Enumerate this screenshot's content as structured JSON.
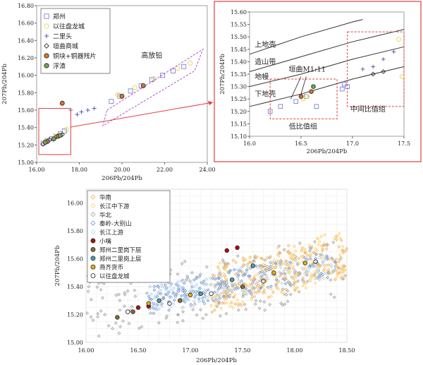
{
  "chart_data": [
    {
      "id": "overview",
      "type": "scatter",
      "xlabel": "206Pb/204Pb",
      "ylabel": "207Pb/204Pb",
      "xlim": [
        16.0,
        24.0
      ],
      "ylim": [
        15.0,
        16.8
      ],
      "xticks": [
        "16.00",
        "18.00",
        "20.00",
        "22.00",
        "24.00"
      ],
      "yticks": [
        "15.00",
        "15.20",
        "15.40",
        "15.60",
        "15.80",
        "16.00",
        "16.20",
        "16.40",
        "16.60",
        "16.80"
      ],
      "grid": false,
      "legend_position": "top-left",
      "annotations": [
        "高放铅"
      ],
      "series": [
        {
          "name": "郑州",
          "marker": "square",
          "color": "#7f7fd8",
          "fill": "none",
          "points": [
            [
              16.3,
              15.22
            ],
            [
              16.5,
              15.25
            ],
            [
              16.7,
              15.27
            ],
            [
              16.9,
              15.3
            ],
            [
              17.1,
              15.33
            ],
            [
              17.3,
              15.36
            ],
            [
              19.5,
              15.7
            ],
            [
              19.9,
              15.76
            ],
            [
              20.4,
              15.82
            ],
            [
              20.9,
              15.88
            ],
            [
              21.4,
              15.95
            ],
            [
              21.9,
              16.0
            ],
            [
              22.4,
              16.05
            ],
            [
              22.9,
              16.1
            ]
          ]
        },
        {
          "name": "以往盘龙城",
          "marker": "circle",
          "color": "#e8d34a",
          "fill": "none",
          "points": [
            [
              16.4,
              15.24
            ],
            [
              16.9,
              15.3
            ],
            [
              17.4,
              15.38
            ],
            [
              19.8,
              15.78
            ],
            [
              20.6,
              15.86
            ],
            [
              21.5,
              15.96
            ],
            [
              22.6,
              16.08
            ],
            [
              23.2,
              16.14
            ]
          ]
        },
        {
          "name": "二里头",
          "marker": "plus",
          "color": "#5060b8",
          "fill": "none",
          "points": [
            [
              17.6,
              15.6
            ],
            [
              17.9,
              15.55
            ],
            [
              18.1,
              15.58
            ],
            [
              18.4,
              15.6
            ],
            [
              18.7,
              15.62
            ]
          ]
        },
        {
          "name": "垣曲商城",
          "marker": "diamond",
          "color": "#333333",
          "fill": "none",
          "points": [
            [
              16.3,
              15.21
            ],
            [
              16.6,
              15.26
            ],
            [
              16.9,
              15.29
            ],
            [
              17.2,
              15.32
            ]
          ]
        },
        {
          "name": "铜块+铜器残片",
          "marker": "circle",
          "color": "#333333",
          "fill": "#d9742b",
          "points": [
            [
              16.5,
              15.24
            ],
            [
              17.0,
              15.3
            ],
            [
              17.2,
              15.68
            ],
            [
              20.0,
              15.76
            ],
            [
              21.0,
              15.88
            ]
          ]
        },
        {
          "name": "浮渣",
          "marker": "circle",
          "color": "#333333",
          "fill": "#6aa84f",
          "points": [
            [
              16.4,
              15.23
            ],
            [
              16.8,
              15.27
            ],
            [
              17.1,
              15.31
            ]
          ]
        }
      ]
    },
    {
      "id": "zoom",
      "type": "scatter",
      "xlabel": "206Pb/204Pb",
      "ylabel": "207Pb/204Pb",
      "xlim": [
        16.0,
        17.5
      ],
      "ylim": [
        15.1,
        15.6
      ],
      "xticks": [
        "16.0",
        "16.5",
        "17.0",
        "17.5"
      ],
      "yticks": [
        "15.10",
        "15.15",
        "15.20",
        "15.25",
        "15.30",
        "15.35",
        "15.40",
        "15.45",
        "15.50",
        "15.55",
        "15.60"
      ],
      "grid": false,
      "annotations": [
        "上地壳",
        "造山带",
        "地幔",
        "下地壳",
        "垣曲M1:11",
        "低比值组",
        "中间比值组"
      ],
      "curves": [
        {
          "name": "上地壳",
          "points": [
            [
              16.0,
              15.43
            ],
            [
              16.5,
              15.5
            ],
            [
              17.0,
              15.56
            ],
            [
              17.1,
              15.57
            ]
          ]
        },
        {
          "name": "造山带",
          "points": [
            [
              16.0,
              15.36
            ],
            [
              16.5,
              15.42
            ],
            [
              17.0,
              15.48
            ],
            [
              17.5,
              15.53
            ]
          ]
        },
        {
          "name": "地幔",
          "points": [
            [
              16.0,
              15.3
            ],
            [
              16.5,
              15.35
            ],
            [
              17.0,
              15.41
            ],
            [
              17.5,
              15.46
            ]
          ]
        },
        {
          "name": "下地壳",
          "points": [
            [
              16.0,
              15.22
            ],
            [
              16.5,
              15.27
            ],
            [
              17.0,
              15.33
            ],
            [
              17.5,
              15.38
            ]
          ]
        }
      ],
      "series": [
        {
          "name": "郑州",
          "marker": "square",
          "color": "#7f7fd8",
          "fill": "none",
          "points": [
            [
              16.2,
              15.2
            ],
            [
              16.3,
              15.22
            ],
            [
              16.45,
              15.24
            ],
            [
              16.55,
              15.26
            ],
            [
              16.65,
              15.22
            ],
            [
              16.9,
              15.29
            ],
            [
              16.92,
              15.31
            ],
            [
              16.95,
              15.3
            ]
          ]
        },
        {
          "name": "以往盘龙城",
          "marker": "circle",
          "color": "#e8d34a",
          "fill": "none",
          "points": [
            [
              16.52,
              15.25
            ],
            [
              16.56,
              15.26
            ],
            [
              17.45,
              15.49
            ],
            [
              17.48,
              15.34
            ]
          ]
        },
        {
          "name": "二里头",
          "marker": "plus",
          "color": "#5060b8",
          "fill": "none",
          "points": [
            [
              17.1,
              15.37
            ],
            [
              17.2,
              15.38
            ],
            [
              17.3,
              15.41
            ],
            [
              17.4,
              15.44
            ]
          ]
        },
        {
          "name": "垣曲商城",
          "marker": "diamond",
          "color": "#333333",
          "fill": "none",
          "points": [
            [
              17.2,
              15.35
            ],
            [
              17.3,
              15.36
            ]
          ]
        },
        {
          "name": "铜块+铜器残片",
          "marker": "circle",
          "color": "#333333",
          "fill": "#d9742b",
          "points": [
            [
              16.5,
              15.26
            ],
            [
              16.6,
              15.28
            ]
          ]
        },
        {
          "name": "浮渣",
          "marker": "circle",
          "color": "#333333",
          "fill": "#6aa84f",
          "points": [
            [
              16.62,
              15.3
            ]
          ]
        }
      ]
    },
    {
      "id": "regional",
      "type": "scatter",
      "xlabel": "206Pb/204Pb",
      "ylabel": "207Pb/204Pb",
      "xlim": [
        16.0,
        18.5
      ],
      "ylim": [
        15.0,
        16.1
      ],
      "xticks": [
        "16.00",
        "16.50",
        "17.00",
        "17.50",
        "18.00",
        "18.50"
      ],
      "yticks": [
        "15.00",
        "15.20",
        "15.40",
        "15.60",
        "15.80",
        "16.00"
      ],
      "grid": true,
      "legend_position": "top-left",
      "series": [
        {
          "name": "华南",
          "marker": "diamond",
          "color": "#f0b86c",
          "fill": "none"
        },
        {
          "name": "长江中下游",
          "marker": "diamond",
          "color": "#ffd27a",
          "fill": "none"
        },
        {
          "name": "华北",
          "marker": "diamond",
          "color": "#a8a8a8",
          "fill": "none"
        },
        {
          "name": "秦岭-大别山",
          "marker": "diamond",
          "color": "#7aa0d8",
          "fill": "none"
        },
        {
          "name": "长江上游",
          "marker": "diamond",
          "color": "#bcd4ee",
          "fill": "none"
        },
        {
          "name": "小嘴",
          "marker": "circle",
          "color": "#333333",
          "fill": "#c00000",
          "points": [
            [
              16.5,
              15.25
            ],
            [
              16.6,
              15.26
            ],
            [
              17.35,
              15.66
            ],
            [
              17.45,
              15.68
            ]
          ]
        },
        {
          "name": "郑州二里岗下层",
          "marker": "circle",
          "color": "#333333",
          "fill": "#8a6d2b",
          "points": [
            [
              16.3,
              15.18
            ],
            [
              16.45,
              15.22
            ],
            [
              16.9,
              15.3
            ],
            [
              17.5,
              15.4
            ]
          ]
        },
        {
          "name": "郑州二里岗上层",
          "marker": "circle",
          "color": "#333333",
          "fill": "#4aa0a8",
          "points": [
            [
              16.7,
              15.3
            ],
            [
              17.1,
              15.35
            ],
            [
              17.4,
              15.45
            ],
            [
              17.6,
              15.55
            ]
          ]
        },
        {
          "name": "燕齐货币",
          "marker": "circle",
          "color": "#333333",
          "fill": "#f0b000",
          "points": [
            [
              16.6,
              15.28
            ],
            [
              17.0,
              15.34
            ],
            [
              17.8,
              15.5
            ],
            [
              18.1,
              15.57
            ]
          ]
        },
        {
          "name": "以往盘龙城",
          "marker": "circle",
          "color": "#333333",
          "fill": "none",
          "points": [
            [
              16.4,
              15.22
            ],
            [
              16.8,
              15.28
            ],
            [
              17.2,
              15.35
            ],
            [
              17.7,
              15.44
            ],
            [
              18.2,
              15.58
            ]
          ]
        }
      ]
    }
  ]
}
